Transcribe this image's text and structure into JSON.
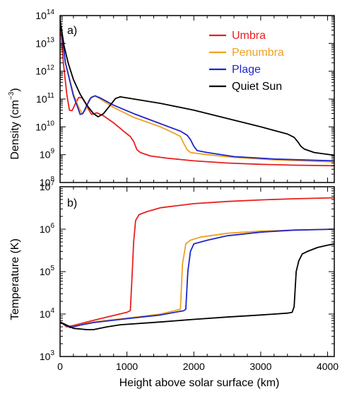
{
  "chart_data": [
    {
      "type": "line",
      "panel_label": "a)",
      "ylabel": "Density (cm",
      "ylabel_exp": "−3",
      "ylabel_close": ")",
      "xlabel": "",
      "y_scale": "log",
      "xlim": [
        0,
        4100
      ],
      "ylim": [
        100000000.0,
        100000000000000.0
      ],
      "x_ticks": [
        0,
        1000,
        2000,
        3000,
        4000
      ],
      "y_ticks": [
        {
          "base": "10",
          "exp": "8",
          "value": 100000000.0
        },
        {
          "base": "10",
          "exp": "9",
          "value": 1000000000.0
        },
        {
          "base": "10",
          "exp": "10",
          "value": 10000000000.0
        },
        {
          "base": "10",
          "exp": "11",
          "value": 100000000000.0
        },
        {
          "base": "10",
          "exp": "12",
          "value": 1000000000000.0
        },
        {
          "base": "10",
          "exp": "13",
          "value": 10000000000000.0
        },
        {
          "base": "10",
          "exp": "14",
          "value": 100000000000000.0
        }
      ],
      "legend": "top-right",
      "series": [
        {
          "name": "Umbra",
          "color": "#e8201e",
          "points": [
            [
              0,
              70000000000000.0
            ],
            [
              50,
              2000000000000.0
            ],
            [
              100,
              150000000000.0
            ],
            [
              140,
              40000000000.0
            ],
            [
              180,
              38000000000.0
            ],
            [
              230,
              70000000000.0
            ],
            [
              280,
              115000000000.0
            ],
            [
              330,
              110000000000.0
            ],
            [
              380,
              70000000000.0
            ],
            [
              420,
              45000000000.0
            ],
            [
              470,
              28000000000.0
            ],
            [
              550,
              32000000000.0
            ],
            [
              650,
              25000000000.0
            ],
            [
              800,
              14000000000.0
            ],
            [
              950,
              7000000000.0
            ],
            [
              1050,
              4500000000.0
            ],
            [
              1100,
              3000000000.0
            ],
            [
              1150,
              1500000000.0
            ],
            [
              1200,
              1200000000.0
            ],
            [
              1350,
              900000000.0
            ],
            [
              1600,
              750000000.0
            ],
            [
              2000,
              600000000.0
            ],
            [
              2500,
              500000000.0
            ],
            [
              3000,
              450000000.0
            ],
            [
              3500,
              420000000.0
            ],
            [
              4100,
              400000000.0
            ]
          ]
        },
        {
          "name": "Penumbra",
          "color": "#f0a020",
          "points": [
            [
              0,
              70000000000000.0
            ],
            [
              80,
              2000000000000.0
            ],
            [
              200,
              150000000000.0
            ],
            [
              280,
              50000000000.0
            ],
            [
              330,
              30000000000.0
            ],
            [
              380,
              40000000000.0
            ],
            [
              430,
              90000000000.0
            ],
            [
              470,
              120000000000.0
            ],
            [
              530,
              130000000000.0
            ],
            [
              600,
              100000000000.0
            ],
            [
              800,
              50000000000.0
            ],
            [
              1100,
              22000000000.0
            ],
            [
              1500,
              10000000000.0
            ],
            [
              1700,
              6000000000.0
            ],
            [
              1800,
              4500000000.0
            ],
            [
              1850,
              2500000000.0
            ],
            [
              1900,
              1500000000.0
            ],
            [
              1950,
              1200000000.0
            ],
            [
              2200,
              1000000000.0
            ],
            [
              2600,
              800000000.0
            ],
            [
              3200,
              650000000.0
            ],
            [
              4100,
              550000000.0
            ]
          ]
        },
        {
          "name": "Plage",
          "color": "#1f26c8",
          "points": [
            [
              0,
              70000000000000.0
            ],
            [
              80,
              2000000000000.0
            ],
            [
              200,
              130000000000.0
            ],
            [
              270,
              45000000000.0
            ],
            [
              300,
              28000000000.0
            ],
            [
              340,
              30000000000.0
            ],
            [
              400,
              60000000000.0
            ],
            [
              460,
              110000000000.0
            ],
            [
              520,
              130000000000.0
            ],
            [
              600,
              110000000000.0
            ],
            [
              800,
              60000000000.0
            ],
            [
              1100,
              30000000000.0
            ],
            [
              1500,
              13000000000.0
            ],
            [
              1800,
              7000000000.0
            ],
            [
              1900,
              5000000000.0
            ],
            [
              1950,
              3500000000.0
            ],
            [
              2000,
              2000000000.0
            ],
            [
              2050,
              1400000000.0
            ],
            [
              2200,
              1200000000.0
            ],
            [
              2600,
              850000000.0
            ],
            [
              3200,
              700000000.0
            ],
            [
              4100,
              600000000.0
            ]
          ]
        },
        {
          "name": "Quiet Sun",
          "color": "#000000",
          "points": [
            [
              0,
              70000000000000.0
            ],
            [
              60,
              8000000000000.0
            ],
            [
              120,
              2000000000000.0
            ],
            [
              200,
              500000000000.0
            ],
            [
              300,
              150000000000.0
            ],
            [
              400,
              60000000000.0
            ],
            [
              500,
              30000000000.0
            ],
            [
              570,
              23000000000.0
            ],
            [
              650,
              30000000000.0
            ],
            [
              750,
              60000000000.0
            ],
            [
              830,
              105000000000.0
            ],
            [
              900,
              120000000000.0
            ],
            [
              1000,
              110000000000.0
            ],
            [
              1500,
              70000000000.0
            ],
            [
              2000,
              40000000000.0
            ],
            [
              2500,
              20000000000.0
            ],
            [
              3000,
              10000000000.0
            ],
            [
              3400,
              5500000000.0
            ],
            [
              3500,
              4200000000.0
            ],
            [
              3550,
              3000000000.0
            ],
            [
              3600,
              2000000000.0
            ],
            [
              3650,
              1600000000.0
            ],
            [
              3800,
              1200000000.0
            ],
            [
              4100,
              950000000.0
            ]
          ]
        }
      ]
    },
    {
      "type": "line",
      "panel_label": "b)",
      "ylabel": "Temperature (K)",
      "xlabel": "Height above solar surface (km)",
      "y_scale": "log",
      "xlim": [
        0,
        4100
      ],
      "ylim": [
        1000.0,
        10000000.0
      ],
      "x_ticks": [
        0,
        1000,
        2000,
        3000,
        4000
      ],
      "y_ticks": [
        {
          "base": "10",
          "exp": "3",
          "value": 1000.0
        },
        {
          "base": "10",
          "exp": "4",
          "value": 10000.0
        },
        {
          "base": "10",
          "exp": "5",
          "value": 100000.0
        },
        {
          "base": "10",
          "exp": "6",
          "value": 1000000.0
        },
        {
          "base": "10",
          "exp": "7",
          "value": 10000000.0
        }
      ],
      "series": [
        {
          "name": "Umbra",
          "color": "#e8201e",
          "points": [
            [
              0,
              6500
            ],
            [
              100,
              5000
            ],
            [
              200,
              5400
            ],
            [
              400,
              6500
            ],
            [
              700,
              8500
            ],
            [
              1000,
              11000
            ],
            [
              1050,
              12000
            ],
            [
              1080,
              100000.0
            ],
            [
              1100,
              500000.0
            ],
            [
              1130,
              1600000.0
            ],
            [
              1180,
              2200000.0
            ],
            [
              1300,
              2600000.0
            ],
            [
              1500,
              3200000.0
            ],
            [
              2000,
              4000000.0
            ],
            [
              2500,
              4500000.0
            ],
            [
              3000,
              4900000.0
            ],
            [
              3500,
              5200000.0
            ],
            [
              4100,
              5500000.0
            ]
          ]
        },
        {
          "name": "Penumbra",
          "color": "#f0a020",
          "points": [
            [
              0,
              6500
            ],
            [
              150,
              4800
            ],
            [
              300,
              5600
            ],
            [
              500,
              6500
            ],
            [
              1000,
              8000
            ],
            [
              1500,
              10000
            ],
            [
              1800,
              13000
            ],
            [
              1830,
              150000.0
            ],
            [
              1880,
              450000.0
            ],
            [
              1950,
              550000.0
            ],
            [
              2100,
              650000.0
            ],
            [
              2500,
              800000.0
            ],
            [
              3000,
              900000.0
            ],
            [
              3500,
              950000.0
            ],
            [
              4100,
              1000000.0
            ]
          ]
        },
        {
          "name": "Plage",
          "color": "#1f26c8",
          "points": [
            [
              0,
              6500
            ],
            [
              150,
              4800
            ],
            [
              300,
              5500
            ],
            [
              500,
              6300
            ],
            [
              1000,
              7800
            ],
            [
              1500,
              9500
            ],
            [
              1850,
              12000
            ],
            [
              1880,
              13000
            ],
            [
              1910,
              100000.0
            ],
            [
              1950,
              300000.0
            ],
            [
              2000,
              450000.0
            ],
            [
              2200,
              550000.0
            ],
            [
              2500,
              700000.0
            ],
            [
              3000,
              850000.0
            ],
            [
              3500,
              950000.0
            ],
            [
              4100,
              1000000.0
            ]
          ]
        },
        {
          "name": "Quiet Sun",
          "color": "#000000",
          "points": [
            [
              0,
              6500
            ],
            [
              200,
              4600
            ],
            [
              400,
              4300
            ],
            [
              500,
              4300
            ],
            [
              700,
              5000
            ],
            [
              900,
              5600
            ],
            [
              1500,
              6500
            ],
            [
              2000,
              7500
            ],
            [
              2500,
              8500
            ],
            [
              3000,
              9500
            ],
            [
              3400,
              10500
            ],
            [
              3470,
              11000
            ],
            [
              3500,
              15000.0
            ],
            [
              3530,
              100000.0
            ],
            [
              3570,
              180000.0
            ],
            [
              3620,
              260000.0
            ],
            [
              3700,
              300000.0
            ],
            [
              3850,
              370000.0
            ],
            [
              4000,
              420000.0
            ],
            [
              4100,
              450000.0
            ]
          ]
        }
      ]
    }
  ]
}
